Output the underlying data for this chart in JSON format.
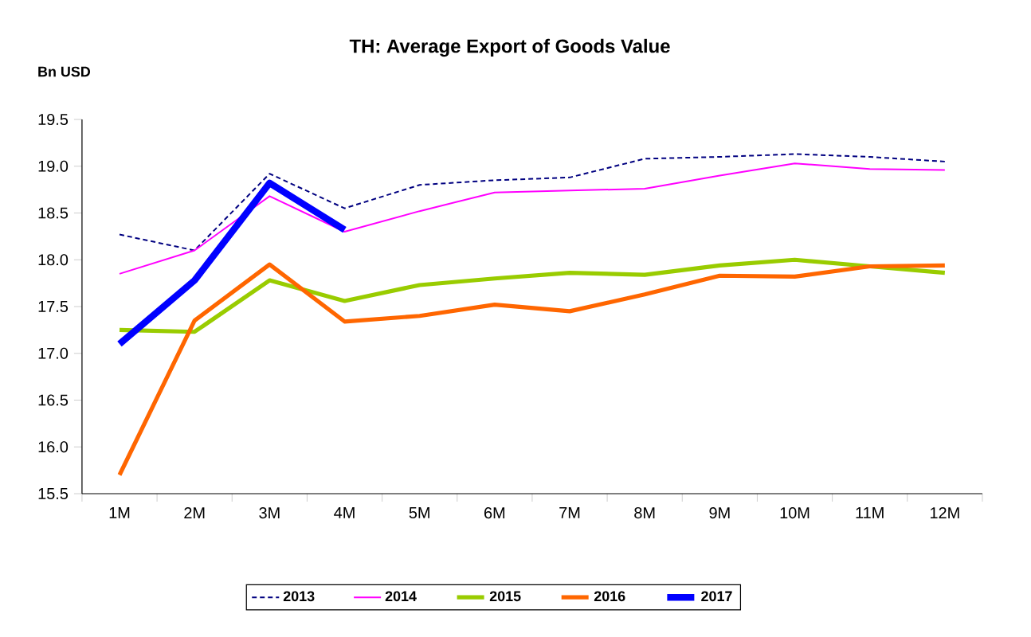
{
  "chart_data": {
    "type": "line",
    "title": "TH: Average Export of Goods Value",
    "ylabel": "Bn USD",
    "categories": [
      "1M",
      "2M",
      "3M",
      "4M",
      "5M",
      "6M",
      "7M",
      "8M",
      "9M",
      "10M",
      "11M",
      "12M"
    ],
    "series": [
      {
        "name": "2013",
        "color": "#000080",
        "line_style": "dashed",
        "values": [
          18.27,
          18.1,
          18.92,
          18.55,
          18.8,
          18.85,
          18.88,
          19.08,
          19.1,
          19.13,
          19.1,
          19.05
        ]
      },
      {
        "name": "2014",
        "color": "#ff00ff",
        "values": [
          17.85,
          18.1,
          18.68,
          18.3,
          18.52,
          18.72,
          18.74,
          18.76,
          18.9,
          19.03,
          18.97,
          18.96
        ]
      },
      {
        "name": "2015",
        "color": "#99cc00",
        "values": [
          17.25,
          17.23,
          17.78,
          17.56,
          17.73,
          17.8,
          17.86,
          17.84,
          17.94,
          18.0,
          17.93,
          17.86
        ]
      },
      {
        "name": "2016",
        "color": "#ff6600",
        "values": [
          15.7,
          17.35,
          17.95,
          17.34,
          17.4,
          17.52,
          17.45,
          17.63,
          17.83,
          17.82,
          17.93,
          17.94
        ]
      },
      {
        "name": "2017",
        "color": "#0000ff",
        "values": [
          17.1,
          17.78,
          18.82,
          18.32,
          null,
          null,
          null,
          null,
          null,
          null,
          null,
          null
        ]
      }
    ],
    "ylim": [
      15.5,
      19.5
    ],
    "yticks": [
      {
        "value": 15.5,
        "label": "15.5"
      },
      {
        "value": 16,
        "label": "16.0"
      },
      {
        "value": 16.5,
        "label": "16.5"
      },
      {
        "value": 17,
        "label": "17.0"
      },
      {
        "value": 17.5,
        "label": "17.5"
      },
      {
        "value": 18,
        "label": "18.0"
      },
      {
        "value": 18.5,
        "label": "18.5"
      },
      {
        "value": 19,
        "label": "19.0"
      },
      {
        "value": 19.5,
        "label": "19.5"
      }
    ],
    "grid": false,
    "legend": "bottom",
    "marker": "none",
    "line_style": "solid"
  }
}
